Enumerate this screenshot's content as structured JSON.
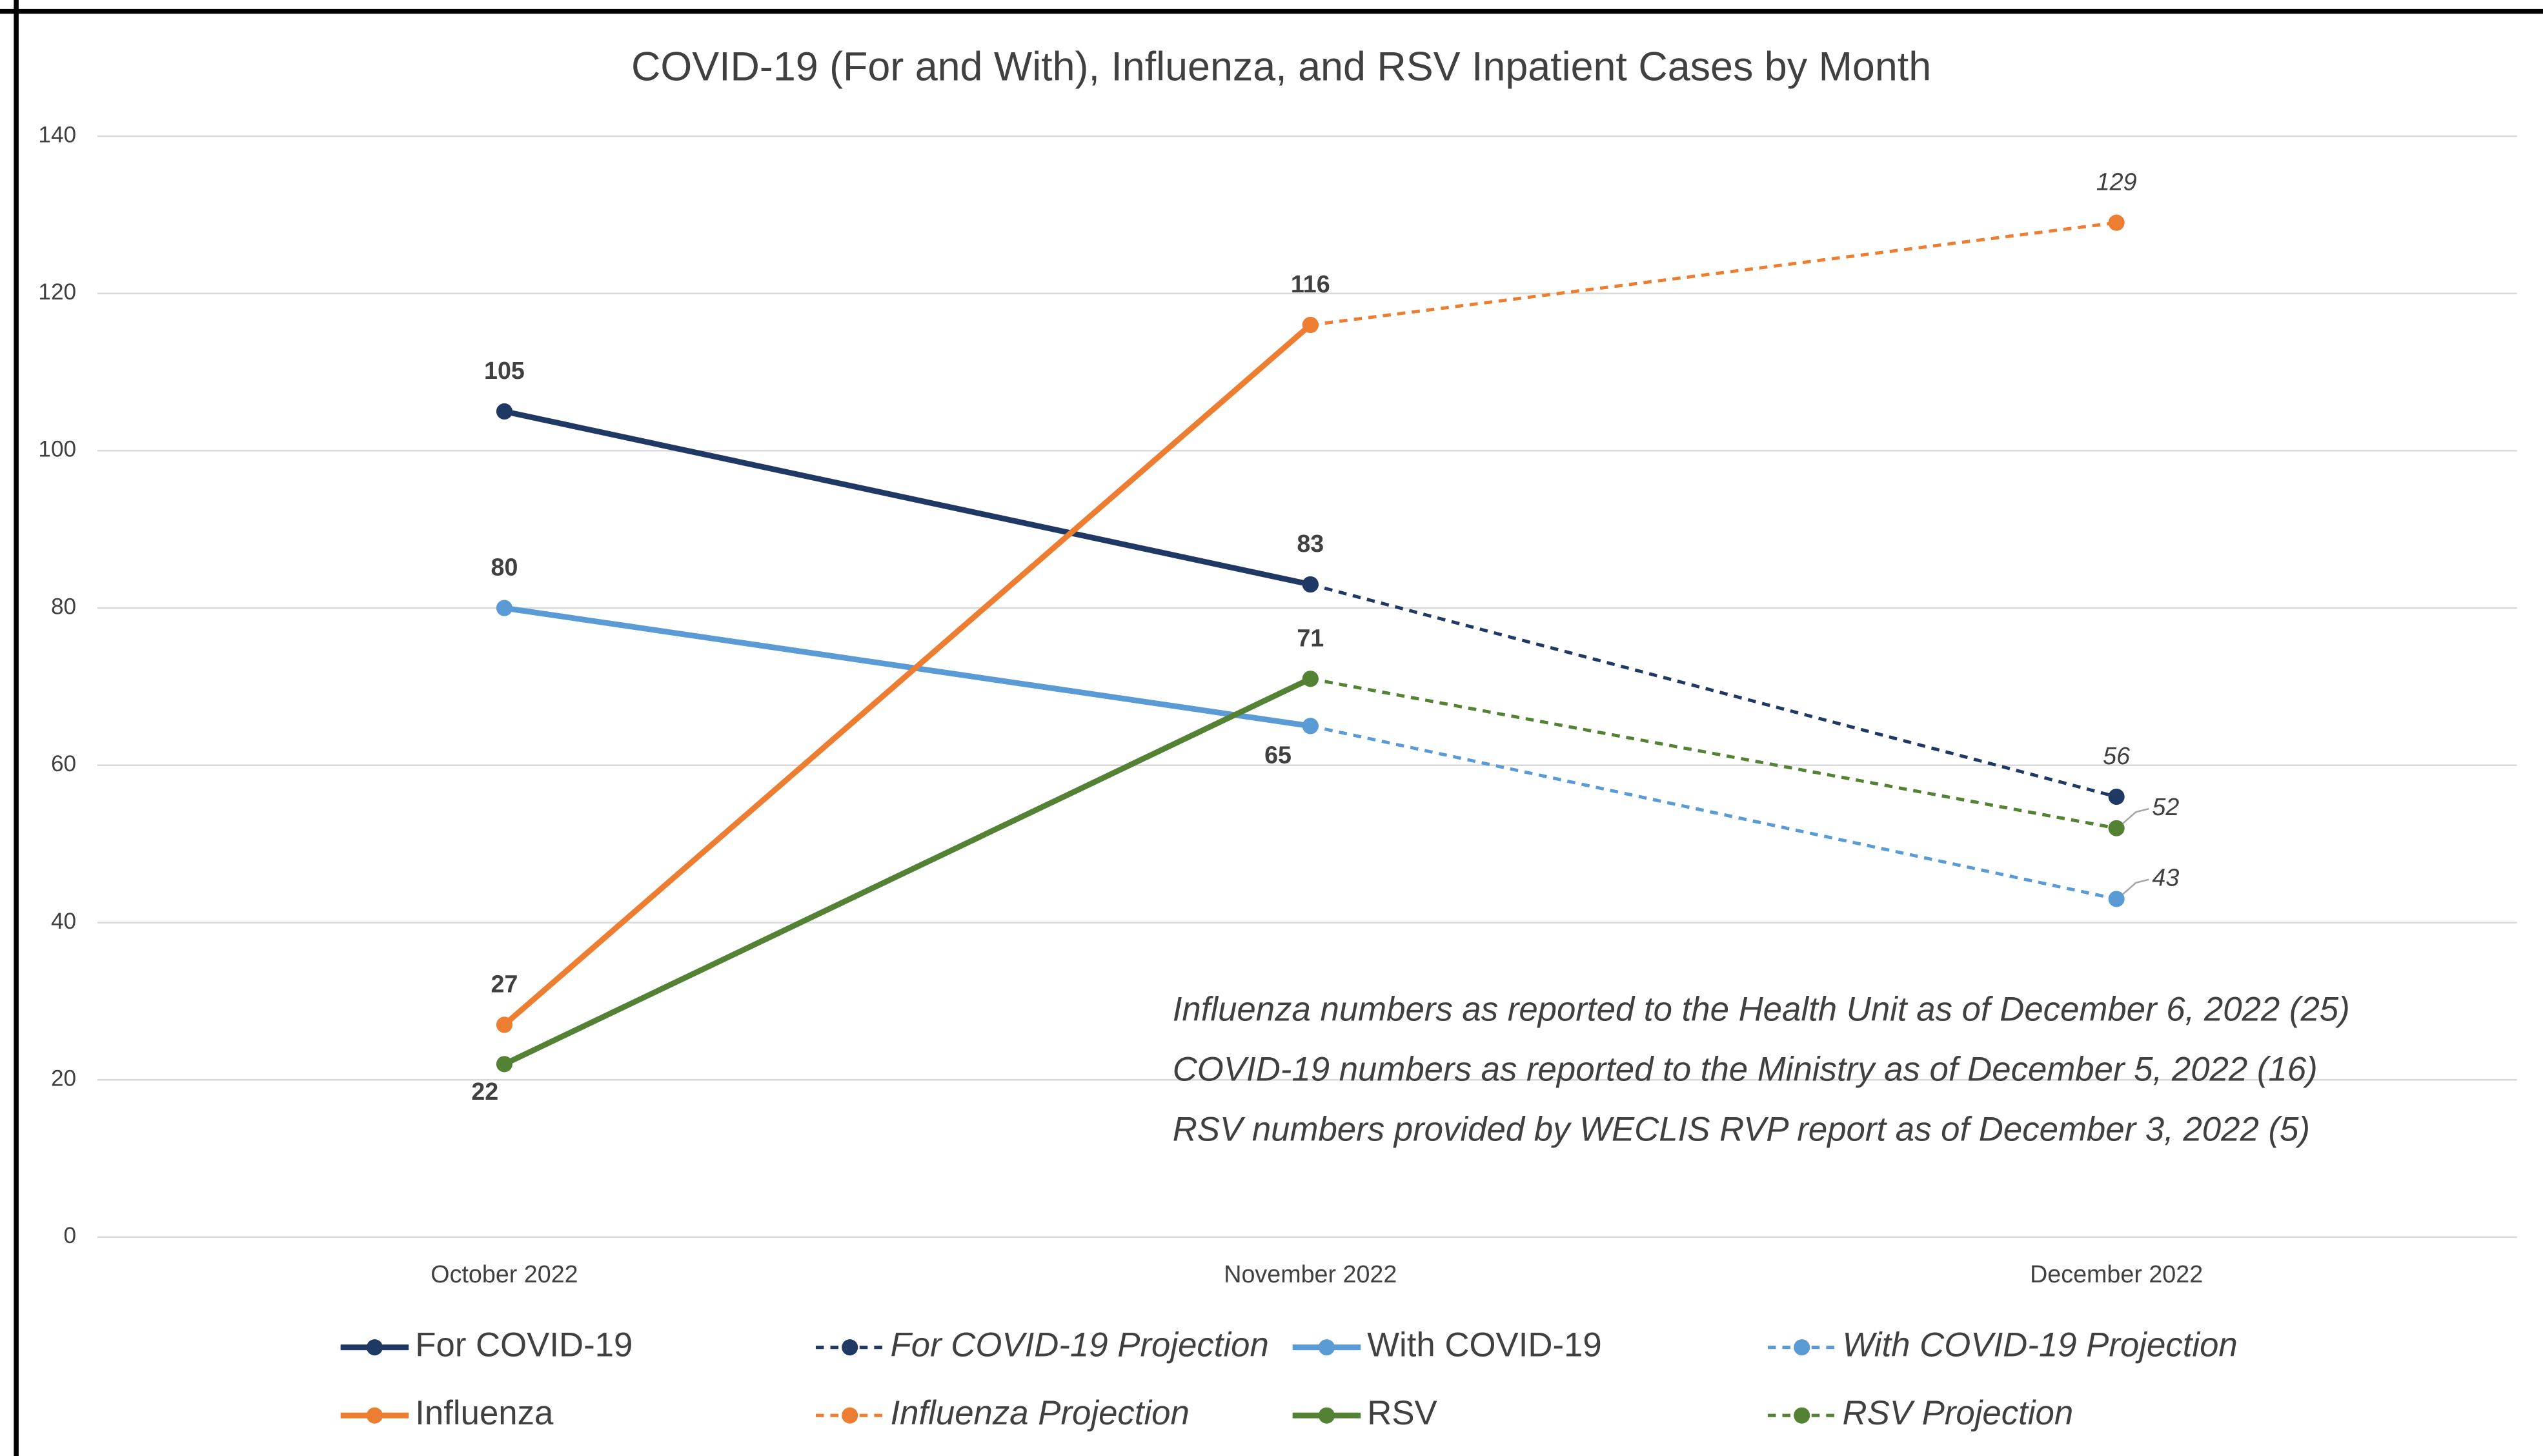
{
  "chart_data": {
    "type": "line",
    "title": "COVID-19 (For and With), Influenza, and RSV Inpatient Cases by Month",
    "categories": [
      "October 2022",
      "November 2022",
      "December 2022"
    ],
    "series": [
      {
        "name": "For COVID-19",
        "color": "#203864",
        "dashed": false,
        "values": [
          105,
          83,
          null
        ]
      },
      {
        "name": "For COVID-19 Projection",
        "color": "#203864",
        "dashed": true,
        "values": [
          null,
          83,
          56
        ]
      },
      {
        "name": "With COVID-19",
        "color": "#5b9bd5",
        "dashed": false,
        "values": [
          80,
          65,
          null
        ]
      },
      {
        "name": "With COVID-19 Projection",
        "color": "#5b9bd5",
        "dashed": true,
        "values": [
          null,
          65,
          43
        ]
      },
      {
        "name": "Influenza",
        "color": "#ed7d31",
        "dashed": false,
        "values": [
          27,
          116,
          null
        ]
      },
      {
        "name": "Influenza Projection",
        "color": "#ed7d31",
        "dashed": true,
        "values": [
          null,
          116,
          129
        ]
      },
      {
        "name": "RSV",
        "color": "#548235",
        "dashed": false,
        "values": [
          22,
          71,
          null
        ]
      },
      {
        "name": "RSV Projection",
        "color": "#548235",
        "dashed": true,
        "values": [
          null,
          71,
          52
        ]
      }
    ],
    "ylim": [
      0,
      140
    ],
    "yticks": [
      0,
      20,
      40,
      60,
      80,
      100,
      120,
      140
    ],
    "grid": true,
    "legend": "bottom",
    "annotations": [
      "Influenza numbers as reported to the Health Unit as of December 6, 2022 (25)",
      "COVID-19 numbers as reported to the Ministry as of December 5, 2022 (16)",
      "RSV numbers provided by WECLIS RVP report as of December 3, 2022 (5)"
    ]
  }
}
